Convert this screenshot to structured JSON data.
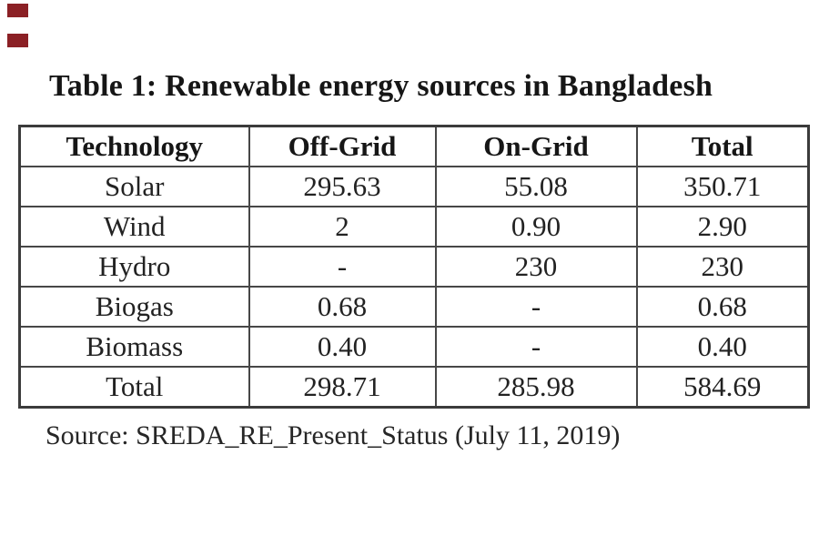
{
  "colors": {
    "background": "#ffffff",
    "text": "#1f1f1f",
    "table_border": "#474747",
    "corner_mark": "#8b2025"
  },
  "decorations": {
    "corner_marks_count": 2
  },
  "title": {
    "text": "Table 1: Renewable energy sources in Bangladesh"
  },
  "table": {
    "headers": [
      "Technology",
      "Off-Grid",
      "On-Grid",
      "Total"
    ],
    "rows": [
      [
        "Solar",
        "295.63",
        "55.08",
        "350.71"
      ],
      [
        "Wind",
        "2",
        "0.90",
        "2.90"
      ],
      [
        "Hydro",
        "-",
        "230",
        "230"
      ],
      [
        "Biogas",
        "0.68",
        "-",
        "0.68"
      ],
      [
        "Biomass",
        "0.40",
        "-",
        "0.40"
      ],
      [
        "Total",
        "298.71",
        "285.98",
        "584.69"
      ]
    ]
  },
  "source": {
    "text": "Source: SREDA_RE_Present_Status (July 11, 2019)"
  },
  "chart_data": {
    "type": "table",
    "title": "Table 1: Renewable energy sources in Bangladesh",
    "columns": [
      "Technology",
      "Off-Grid",
      "On-Grid",
      "Total"
    ],
    "rows": [
      {
        "technology": "Solar",
        "off_grid": 295.63,
        "on_grid": 55.08,
        "total": 350.71
      },
      {
        "technology": "Wind",
        "off_grid": 2,
        "on_grid": 0.9,
        "total": 2.9
      },
      {
        "technology": "Hydro",
        "off_grid": null,
        "on_grid": 230,
        "total": 230
      },
      {
        "technology": "Biogas",
        "off_grid": 0.68,
        "on_grid": null,
        "total": 0.68
      },
      {
        "technology": "Biomass",
        "off_grid": 0.4,
        "on_grid": null,
        "total": 0.4
      },
      {
        "technology": "Total",
        "off_grid": 298.71,
        "on_grid": 285.98,
        "total": 584.69
      }
    ],
    "source_note": "Source: SREDA_RE_Present_Status (July 11, 2019)"
  }
}
